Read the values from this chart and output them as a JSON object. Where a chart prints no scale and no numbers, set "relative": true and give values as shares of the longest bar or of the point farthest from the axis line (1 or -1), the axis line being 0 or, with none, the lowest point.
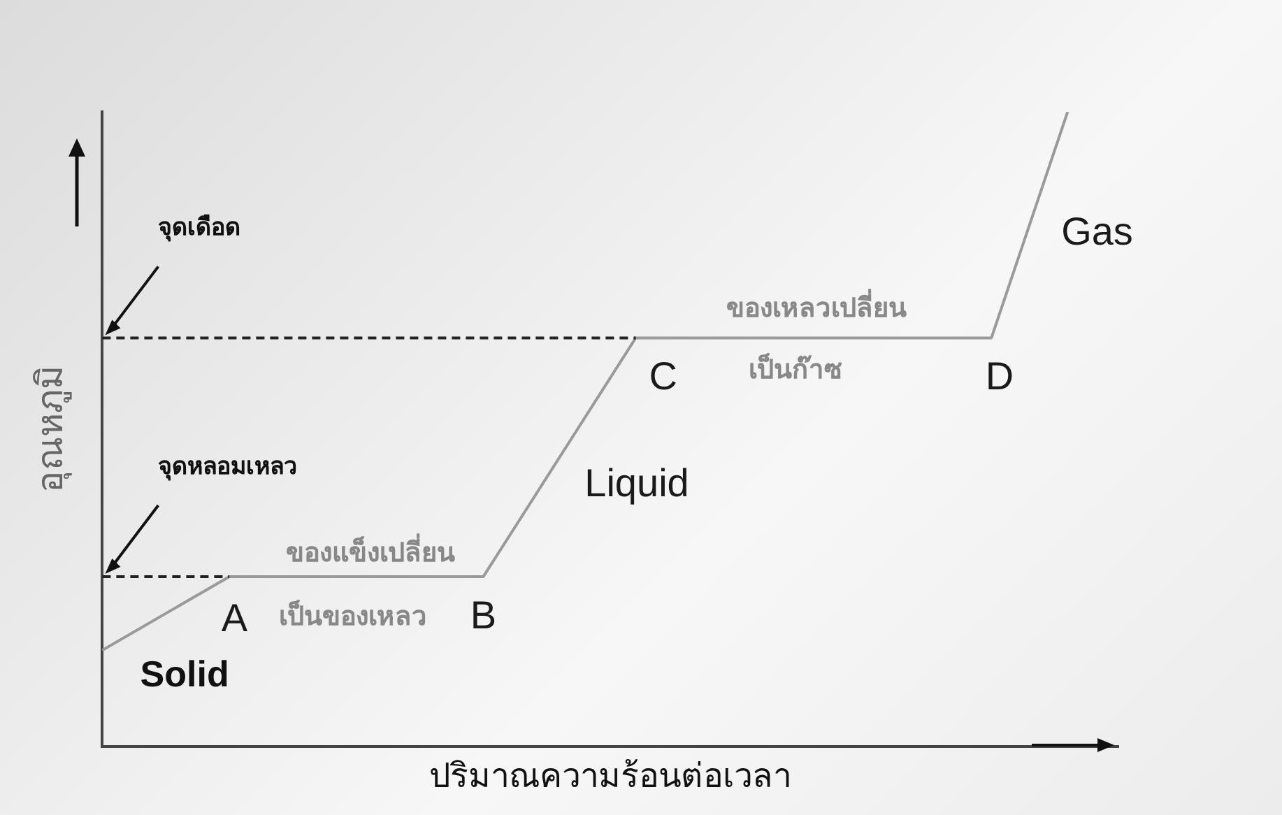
{
  "chart_data": {
    "type": "line",
    "relative": true,
    "xlabel": "ปริมาณความร้อนต่อเวลา",
    "ylabel": "อุณหภูมิ",
    "legend": false,
    "marker": "none",
    "line_style": "solid",
    "categories": [
      null,
      null,
      null,
      null,
      null,
      null,
      null,
      null,
      null,
      null,
      null,
      null,
      null,
      null,
      null,
      null,
      null,
      null,
      null,
      null,
      null,
      null,
      null,
      null,
      null,
      null,
      null,
      null,
      null,
      null,
      null,
      null,
      null,
      null,
      null,
      null,
      null,
      null,
      null,
      null,
      null
    ],
    "series": [
      {
        "color": "#9a9a9a",
        "values": [
          0.152,
          null,
          null,
          null,
          null,
          0.268,
          null,
          null,
          null,
          null,
          null,
          null,
          null,
          null,
          null,
          0.268,
          null,
          null,
          null,
          null,
          null,
          0.644,
          null,
          null,
          null,
          null,
          null,
          null,
          null,
          null,
          null,
          null,
          null,
          null,
          null,
          0.644,
          null,
          null,
          1,
          null,
          null
        ]
      }
    ],
    "ref_lines": [
      {
        "axis": "y",
        "value": 0.644,
        "label": "จุดเดือด",
        "color": "#222222",
        "line_style": "dashed"
      },
      {
        "axis": "y",
        "value": 0.268,
        "label": "จุดหลอมเหลว",
        "color": "#222222",
        "line_style": "dashed"
      }
    ],
    "annotations": [
      "A",
      "B",
      "C",
      "D",
      "Solid",
      "Liquid",
      "Gas",
      "ของแข็งเปลี่ยน",
      "เป็นของเหลว",
      "ของเหลวเปลี่ยน",
      "เป็นก๊าซ"
    ]
  }
}
